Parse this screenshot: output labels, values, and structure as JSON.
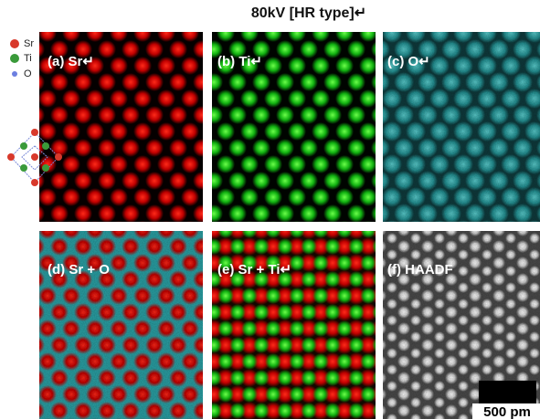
{
  "title": "80kV [HR type]↵",
  "legend": [
    {
      "label": "Sr"
    },
    {
      "label": "Ti"
    },
    {
      "label": "O"
    }
  ],
  "panels": [
    {
      "label": "(a) Sr↵"
    },
    {
      "label": "(b) Ti↵"
    },
    {
      "label": "(c) O↵"
    },
    {
      "label": "(d) Sr + O"
    },
    {
      "label": "(e) Sr + Ti↵"
    },
    {
      "label": "(f) HAADF"
    }
  ],
  "scale_bar": {
    "label": "500 pm"
  }
}
